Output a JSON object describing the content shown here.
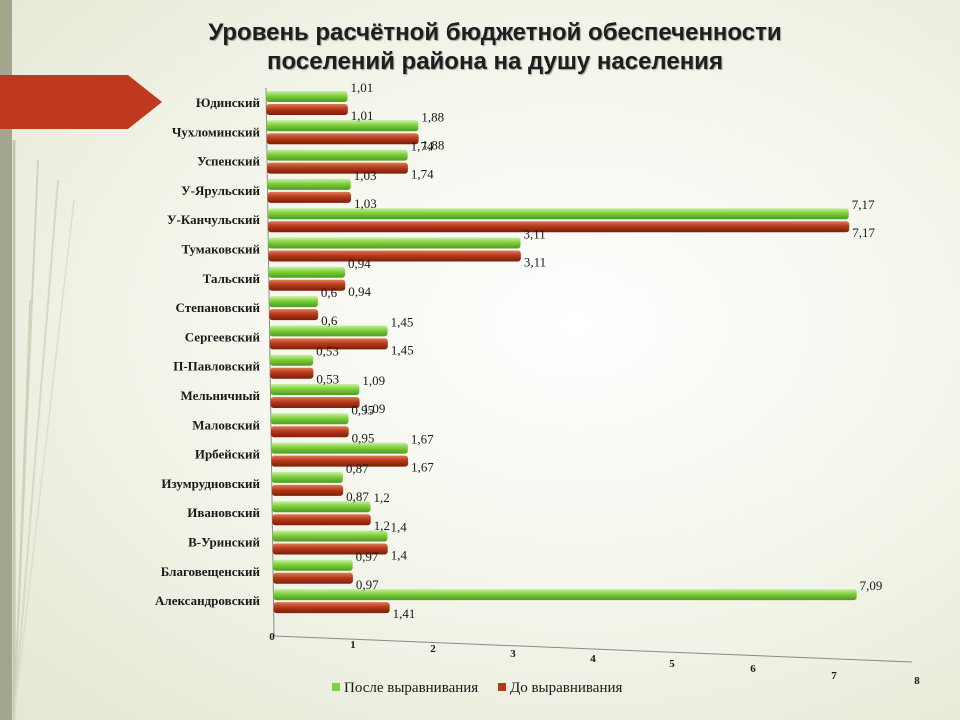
{
  "title_line1": "Уровень расчётной бюджетной обеспеченности",
  "title_line2": "поселений района на душу населения",
  "colors": {
    "after": "#7ecf3c",
    "before": "#b53a1a",
    "arrow": "#c0391f"
  },
  "chart_data": {
    "type": "bar",
    "orientation": "horizontal",
    "categories": [
      "Юдинский",
      "Чухломинский",
      "Успенский",
      "У-Ярульский",
      "У-Канчульский",
      "Тумаковский",
      "Тальский",
      "Степановский",
      "Сергеевский",
      "П-Павловский",
      "Мельничный",
      "Маловский",
      "Ирбейский",
      "Изумрудновский",
      "Ивановский",
      "В-Уринский",
      "Благовещенский",
      "Александровский"
    ],
    "series": [
      {
        "name": "После выравнивания",
        "values": [
          1.01,
          1.88,
          1.74,
          1.03,
          7.17,
          3.11,
          0.94,
          0.6,
          1.45,
          0.53,
          1.09,
          0.95,
          1.67,
          0.87,
          1.2,
          1.4,
          0.97,
          7.09
        ]
      },
      {
        "name": "До выравнивания",
        "values": [
          1.01,
          1.88,
          1.74,
          1.03,
          7.17,
          3.11,
          0.94,
          0.6,
          1.45,
          0.53,
          1.09,
          0.95,
          1.67,
          0.87,
          1.2,
          1.4,
          0.97,
          1.41
        ]
      }
    ],
    "value_labels": {
      "after": [
        "1,01",
        "1,88",
        "1,74",
        "1,03",
        "7,17",
        "3,11",
        "0,94",
        "0,6",
        "1,45",
        "0,53",
        "1,09",
        "0,95",
        "1,67",
        "0,87",
        "1,2",
        "1,4",
        "0,97",
        "7,09"
      ],
      "before": [
        "1,01",
        "1,88",
        "1,74",
        "1,03",
        "7,17",
        "3,11",
        "0,94",
        "0,6",
        "1,45",
        "0,53",
        "1,09",
        "0,95",
        "1,67",
        "0,87",
        "1,2",
        "1,4",
        "0,97",
        "1,41"
      ]
    },
    "x_ticks": [
      "0",
      "1",
      "2",
      "3",
      "4",
      "5",
      "6",
      "7",
      "8"
    ],
    "xlim": [
      0,
      8
    ],
    "legend_position": "bottom",
    "grid": false
  }
}
